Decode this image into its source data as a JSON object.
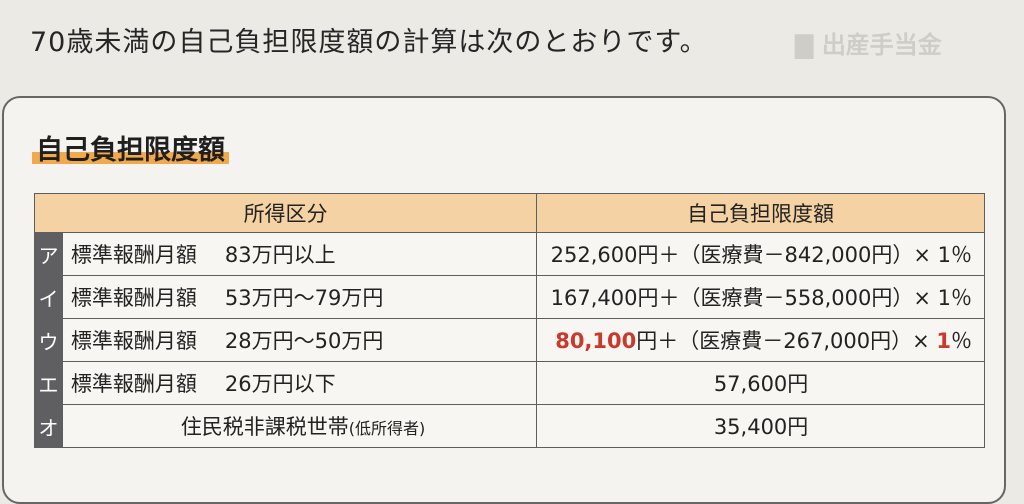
{
  "intro_text": "70歳未満の自己負担限度額の計算は次のとおりです。",
  "box_title": "自己負担限度額",
  "table": {
    "headers": [
      "所得区分",
      "自己負担限度額"
    ],
    "rows": [
      {
        "letter": "ア",
        "label": "標準報酬月額",
        "range": "83万円以上",
        "note": "",
        "amount_a": "252,600円＋（医療費－842,000円）×",
        "amount_b": "1",
        "amount_c": "％"
      },
      {
        "letter": "イ",
        "label": "標準報酬月額",
        "range": "53万円～79万円",
        "note": "",
        "amount_a": "167,400円＋（医療費－558,000円）×",
        "amount_b": "1",
        "amount_c": "％"
      },
      {
        "letter": "ウ",
        "label": "標準報酬月額",
        "range": "28万円～50万円",
        "note": "",
        "amount_hl": "80,100",
        "amount_a": "円＋（医療費－267,000円）×",
        "amount_b": "1",
        "amount_c": "％"
      },
      {
        "letter": "エ",
        "label": "標準報酬月額",
        "range": "26万円以下",
        "note": "",
        "amount": "57,600円"
      },
      {
        "letter": "オ",
        "label": "住民税非課税世帯",
        "range": "",
        "note": "(低所得者)",
        "amount": "35,400円"
      }
    ]
  },
  "colors": {
    "header_fill": "#f4d2a4",
    "title_underline": "#f0a94c",
    "highlight": "#c9392c",
    "letter_cell": "#5f5f62"
  }
}
